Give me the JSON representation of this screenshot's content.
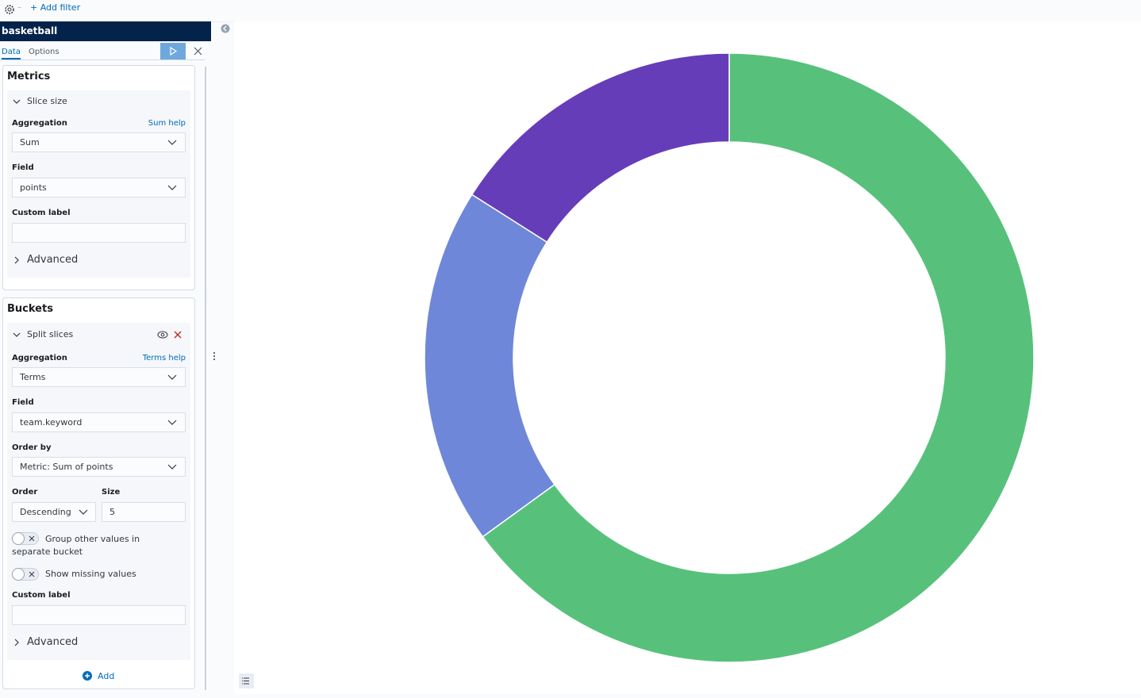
{
  "top_bar": {
    "add_filter": "+ Add filter"
  },
  "sidebar": {
    "title": "basketball",
    "tabs": [
      "Data",
      "Options"
    ],
    "metrics": {
      "title": "Metrics",
      "agg_title": "Slice size",
      "aggregation_label": "Aggregation",
      "help": "Sum help",
      "aggregation": "Sum",
      "field_label": "Field",
      "field": "points",
      "custom_label": "Custom label",
      "advanced": "Advanced"
    },
    "buckets": {
      "title": "Buckets",
      "agg_title": "Split slices",
      "aggregation_label": "Aggregation",
      "help": "Terms help",
      "aggregation": "Terms",
      "field_label": "Field",
      "field": "team.keyword",
      "order_by_label": "Order by",
      "order_by": "Metric: Sum of points",
      "order_label": "Order",
      "order": "Descending",
      "size_label": "Size",
      "size": 5,
      "group_other": "Group other values in separate bucket",
      "show_missing": "Show missing values",
      "custom_label": "Custom label",
      "advanced": "Advanced",
      "add": "Add"
    }
  },
  "chart_data": {
    "type": "pie",
    "donut": true,
    "categories": [
      null,
      null,
      null
    ],
    "values": [
      65,
      19,
      16
    ],
    "colors": [
      "#57c17b",
      "#6f87d8",
      "#663db8"
    ]
  }
}
